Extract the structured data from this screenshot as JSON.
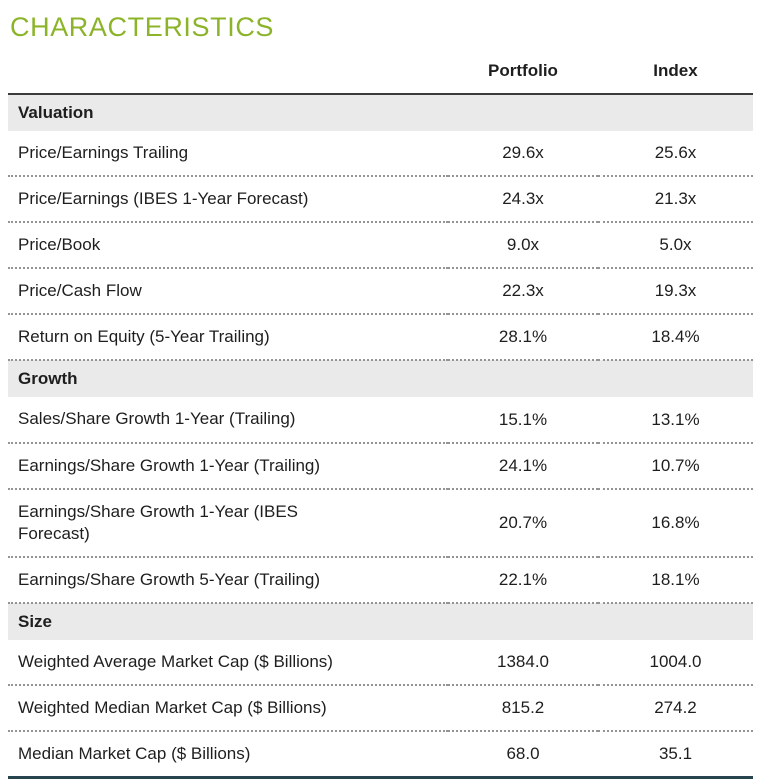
{
  "title": "CHARACTERISTICS",
  "table": {
    "columns": [
      "Portfolio",
      "Index"
    ],
    "sections": [
      {
        "name": "Valuation",
        "rows": [
          {
            "label": "Price/Earnings Trailing",
            "portfolio": "29.6x",
            "index": "25.6x"
          },
          {
            "label": "Price/Earnings (IBES 1-Year Forecast)",
            "portfolio": "24.3x",
            "index": "21.3x"
          },
          {
            "label": "Price/Book",
            "portfolio": "9.0x",
            "index": "5.0x"
          },
          {
            "label": "Price/Cash Flow",
            "portfolio": "22.3x",
            "index": "19.3x"
          },
          {
            "label": "Return on Equity (5-Year Trailing)",
            "portfolio": "28.1%",
            "index": "18.4%"
          }
        ]
      },
      {
        "name": "Growth",
        "rows": [
          {
            "label": "Sales/Share Growth 1-Year (Trailing)",
            "portfolio": "15.1%",
            "index": "13.1%"
          },
          {
            "label": "Earnings/Share Growth 1-Year (Trailing)",
            "portfolio": "24.1%",
            "index": "10.7%"
          },
          {
            "label": "Earnings/Share Growth 1-Year (IBES Forecast)",
            "portfolio": "20.7%",
            "index": "16.8%"
          },
          {
            "label": "Earnings/Share Growth 5-Year (Trailing)",
            "portfolio": "22.1%",
            "index": "18.1%"
          }
        ]
      },
      {
        "name": "Size",
        "rows": [
          {
            "label": "Weighted Average Market Cap ($ Billions)",
            "portfolio": "1384.0",
            "index": "1004.0"
          },
          {
            "label": "Weighted Median Market Cap ($ Billions)",
            "portfolio": "815.2",
            "index": "274.2"
          },
          {
            "label": "Median Market Cap ($ Billions)",
            "portfolio": "68.0",
            "index": "35.1"
          }
        ]
      }
    ]
  },
  "colors": {
    "accent_green": "#8CB42A",
    "text": "#1E1E1E",
    "section_header_bg": "#EAEAEA",
    "dotted_separator": "#949494",
    "header_rule": "#3B3B3B",
    "bottom_rule": "#27454F"
  }
}
